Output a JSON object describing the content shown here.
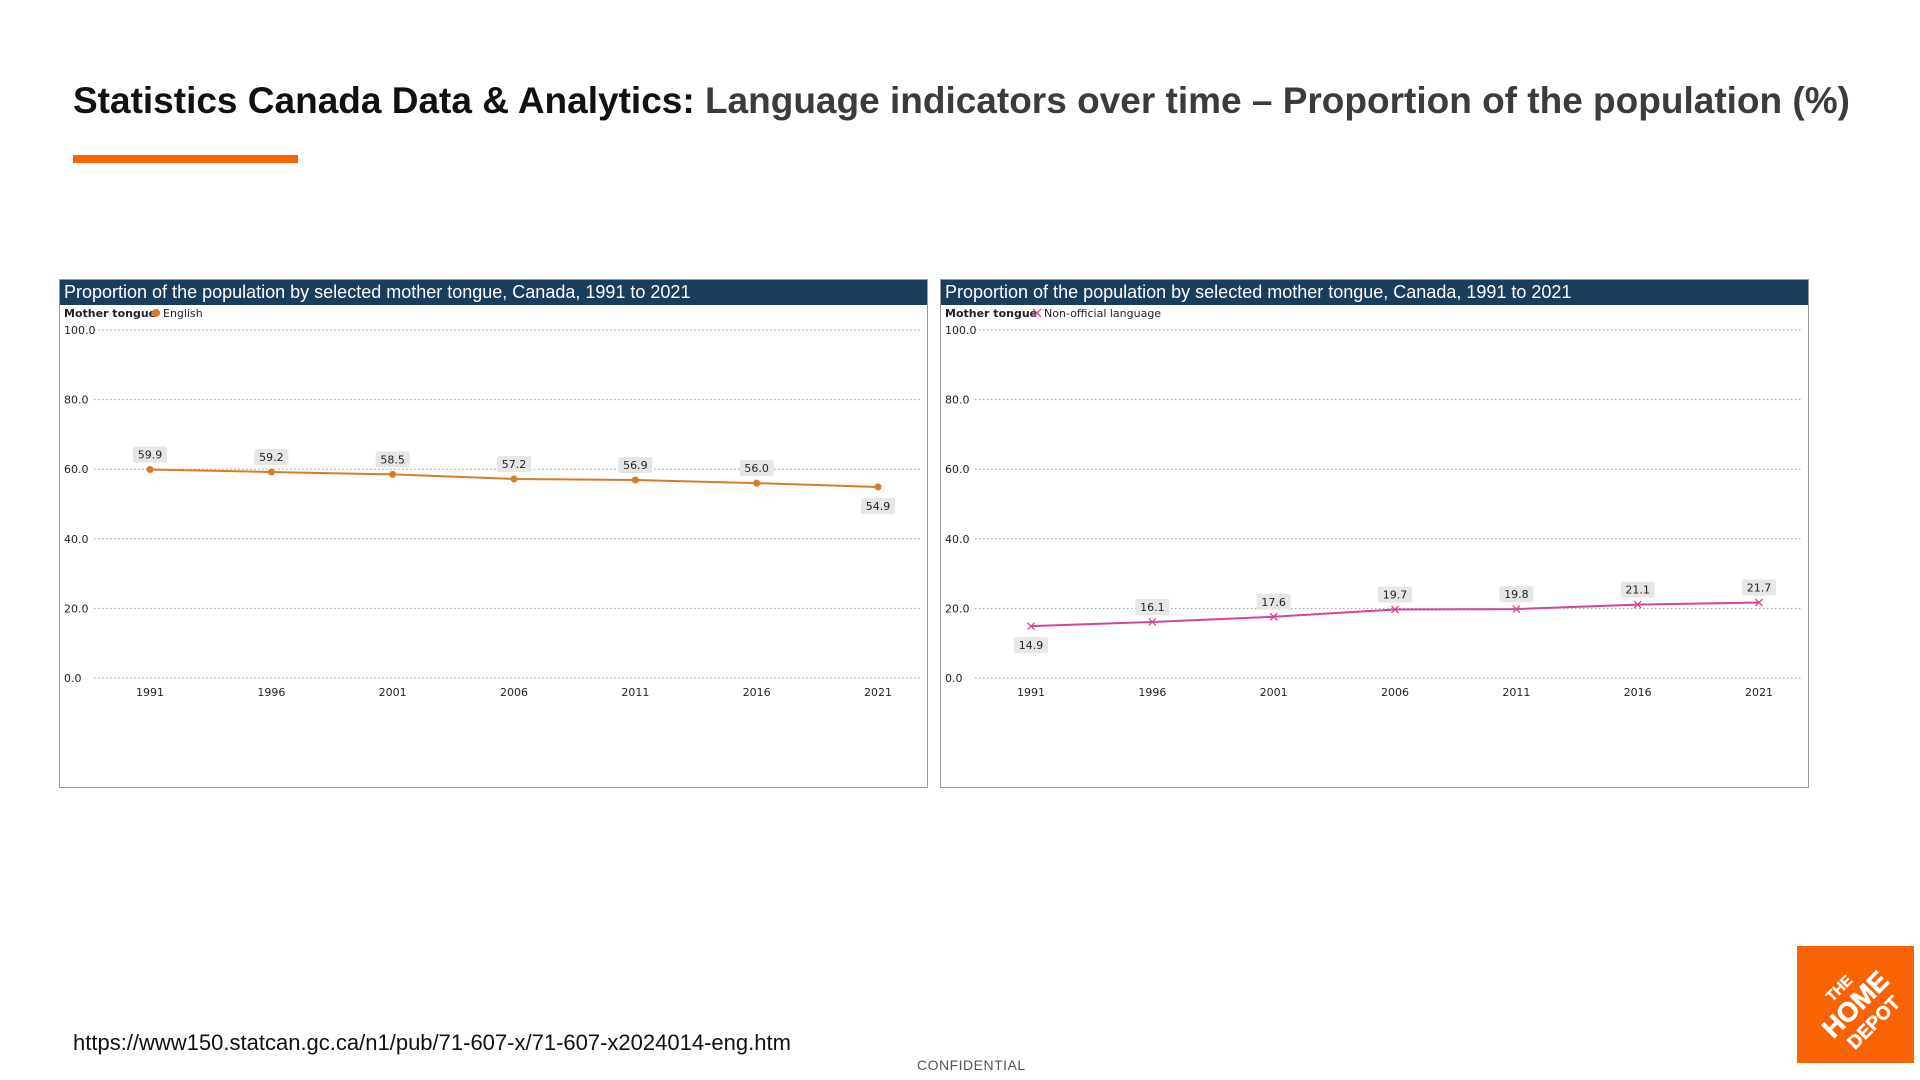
{
  "header": {
    "title_strong": "Statistics Canada Data & Analytics:",
    "title_rest": "Language indicators over time – Proportion of the population (%)",
    "accent_color": "#F96302"
  },
  "footer": {
    "source_url": "https://www150.statcan.gc.ca/n1/pub/71-607-x/71-607-x2024014-eng.htm",
    "confidential_label": "CONFIDENTIAL"
  },
  "logo": {
    "text": "THE HOME DEPOT",
    "icon": "home-depot-logo-icon",
    "color": "#F96302"
  },
  "chart_data": [
    {
      "type": "line",
      "title": "Proportion of the population by selected mother tongue, Canada, 1991 to 2021",
      "header_color": "#1B3D5C",
      "legend_title": "Mother tongue",
      "legend_placement": "top-left",
      "x": [
        "1991",
        "1996",
        "2001",
        "2006",
        "2011",
        "2016",
        "2021"
      ],
      "ylim": [
        0,
        100
      ],
      "yticks": [
        "0.0",
        "20.0",
        "40.0",
        "60.0",
        "80.0",
        "100.0"
      ],
      "grid": true,
      "series": [
        {
          "name": "English",
          "marker": "dot",
          "color": "#D97A2B",
          "values": [
            59.9,
            59.2,
            58.5,
            57.2,
            56.9,
            56.0,
            54.9
          ],
          "labels": [
            "59.9",
            "59.2",
            "58.5",
            "57.2",
            "56.9",
            "56.0",
            "54.9"
          ]
        }
      ]
    },
    {
      "type": "line",
      "title": "Proportion of the population by selected mother tongue, Canada, 1991 to 2021",
      "header_color": "#1B3D5C",
      "legend_title": "Mother tongue",
      "legend_placement": "top-left",
      "x": [
        "1991",
        "1996",
        "2001",
        "2006",
        "2011",
        "2016",
        "2021"
      ],
      "ylim": [
        0,
        100
      ],
      "yticks": [
        "0.0",
        "20.0",
        "40.0",
        "60.0",
        "80.0",
        "100.0"
      ],
      "grid": true,
      "series": [
        {
          "name": "Non-official language",
          "marker": "cross",
          "color": "#D6439A",
          "values": [
            14.9,
            16.1,
            17.6,
            19.7,
            19.8,
            21.1,
            21.7
          ],
          "labels": [
            "14.9",
            "16.1",
            "17.6",
            "19.7",
            "19.8",
            "21.1",
            "21.7"
          ]
        }
      ]
    }
  ]
}
